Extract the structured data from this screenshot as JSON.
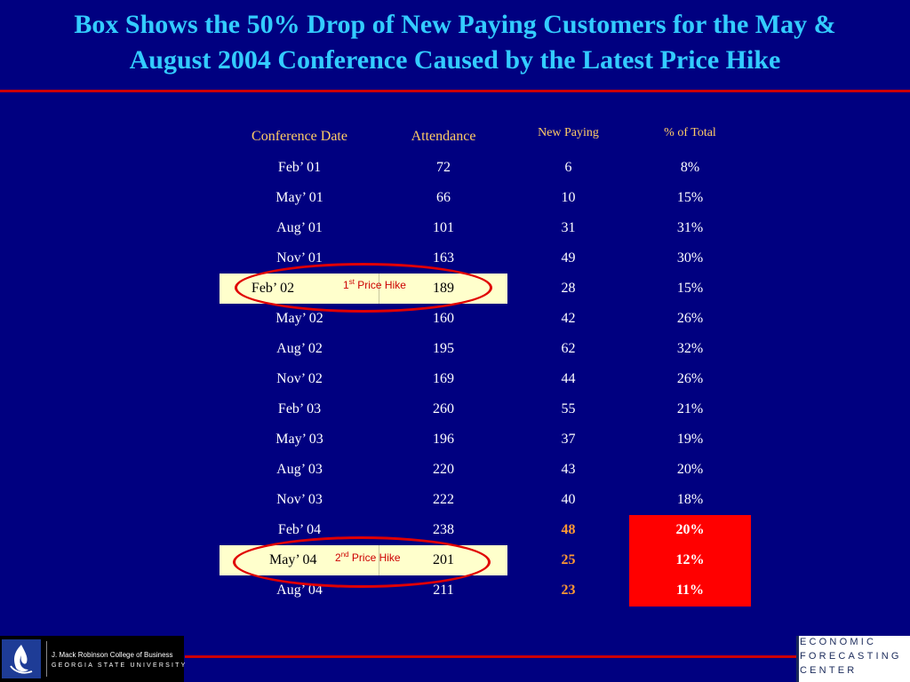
{
  "title": {
    "line1": "Box Shows the 50% Drop of New Paying Customers for the May &",
    "line2": "August 2004 Conference Caused by the Latest Price Hike"
  },
  "table": {
    "headers": [
      "Conference Date",
      "Attendance",
      "New Paying",
      "% of Total"
    ],
    "rows": [
      [
        "Feb’ 01",
        "72",
        "6",
        "8%"
      ],
      [
        "May’ 01",
        "66",
        "10",
        "15%"
      ],
      [
        "Aug’ 01",
        "101",
        "31",
        "31%"
      ],
      [
        "Nov’ 01",
        "163",
        "49",
        "30%"
      ],
      [
        "Feb’ 02",
        "189",
        "28",
        "15%"
      ],
      [
        "May’ 02",
        "160",
        "42",
        "26%"
      ],
      [
        "Aug’ 02",
        "195",
        "62",
        "32%"
      ],
      [
        "Nov’ 02",
        "169",
        "44",
        "26%"
      ],
      [
        "Feb’ 03",
        "260",
        "55",
        "21%"
      ],
      [
        "May’ 03",
        "196",
        "37",
        "19%"
      ],
      [
        "Aug’ 03",
        "220",
        "43",
        "20%"
      ],
      [
        "Nov’ 03",
        "222",
        "40",
        "18%"
      ],
      [
        "Feb’ 04",
        "238",
        "48",
        "20%"
      ],
      [
        "May’ 04",
        "201",
        "25",
        "12%"
      ],
      [
        "Aug’ 04",
        "211",
        "23",
        "11%"
      ]
    ]
  },
  "annotations": {
    "hike1": {
      "num": "1",
      "sup": "st",
      "text": " Price Hike"
    },
    "hike2": {
      "num": "2",
      "sup": "nd",
      "text": " Price Hike"
    }
  },
  "logos": {
    "left_line1": "J. Mack Robinson College of Business",
    "left_line2": "GEORGIA STATE UNIVERSITY",
    "right_line1": "ECONOMIC",
    "right_line2": "FORECASTING",
    "right_line3": "CENTER"
  },
  "colors": {
    "background": "#000080",
    "title": "#33ccff",
    "header": "#ffcc66",
    "highlight_row": "#ffffcc",
    "alert_box": "#ff0000",
    "alert_number": "#ff9933",
    "rule": "#cc0000"
  }
}
